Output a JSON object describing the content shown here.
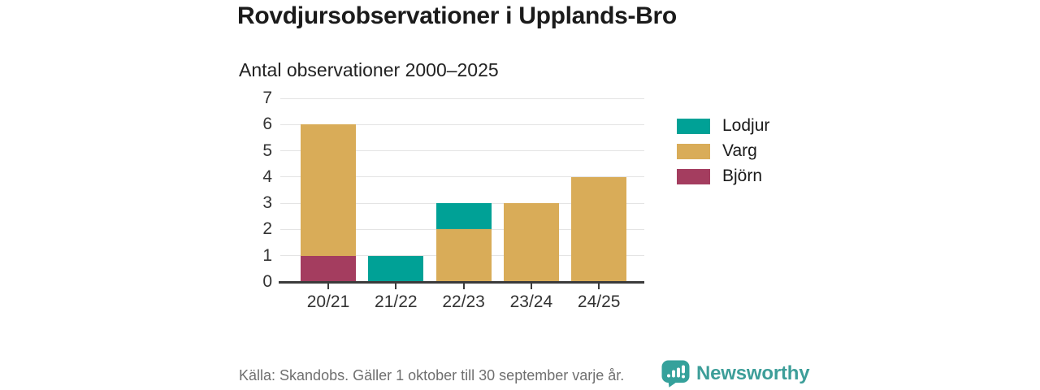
{
  "chart_data": {
    "type": "bar",
    "stacked": true,
    "title": "Rovdjursobservationer i Upplands-Bro",
    "subtitle": "Antal observationer 2000–2025",
    "categories": [
      "20/21",
      "21/22",
      "22/23",
      "23/24",
      "24/25"
    ],
    "series": [
      {
        "name": "Lodjur",
        "color": "#00A196",
        "values": [
          0,
          1,
          1,
          0,
          0
        ]
      },
      {
        "name": "Varg",
        "color": "#D9AC58",
        "values": [
          5,
          0,
          2,
          3,
          4
        ]
      },
      {
        "name": "Björn",
        "color": "#A43D5F",
        "values": [
          1,
          0,
          0,
          0,
          0
        ]
      }
    ],
    "stack_order_bottom_to_top": [
      "Björn",
      "Varg",
      "Lodjur"
    ],
    "totals_per_category": [
      6,
      1,
      3,
      3,
      4
    ],
    "ylim": [
      0,
      7
    ],
    "yticks": [
      0,
      1,
      2,
      3,
      4,
      5,
      6,
      7
    ],
    "grid": true,
    "legend_position": "right"
  },
  "footer": {
    "source": "Källa: Skandobs. Gäller 1 oktober till 30 september varje år.",
    "brand": "Newsworthy",
    "brand_icon": "bar-chart-speech-bubble-icon"
  },
  "colors": {
    "grid": "#E4E4E4",
    "axis": "#3B3B3B",
    "axis_text": "#333333",
    "title_text": "#1B1B1B",
    "muted_text": "#6F6F6F",
    "brand_teal": "#35A19B",
    "brand_text_teal": "#3D9E99"
  }
}
